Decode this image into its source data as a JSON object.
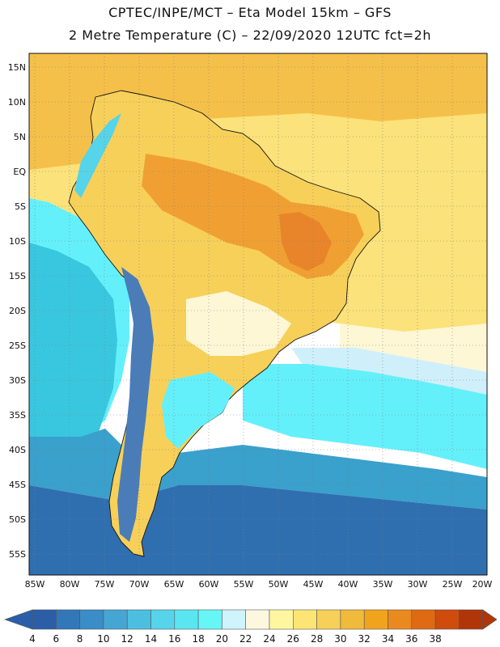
{
  "header": {
    "line1": "CPTEC/INPE/MCT –  Eta Model 15km – GFS",
    "line2": "2 Metre Temperature (C) – 22/09/2020 12UTC fct=2h"
  },
  "map": {
    "lat_labels": [
      "15N",
      "10N",
      "5N",
      "EQ",
      "5S",
      "10S",
      "15S",
      "20S",
      "25S",
      "30S",
      "35S",
      "40S",
      "45S",
      "50S",
      "55S"
    ],
    "lon_labels": [
      "85W",
      "80W",
      "75W",
      "70W",
      "65W",
      "60W",
      "55W",
      "50W",
      "45W",
      "40W",
      "35W",
      "30W",
      "25W",
      "20W"
    ],
    "lat_range": [
      15,
      -55
    ],
    "lon_range": [
      -85,
      -20
    ],
    "gridlines": "dotted",
    "ocean_colors": {
      "tropical": "#f5c04a",
      "warm": "#fbe27a",
      "mild": "#fdf7d6",
      "cool": "#cfeffb",
      "cold": "#64f0fa",
      "colder": "#39c7e0",
      "deep": "#3aa0cc",
      "polar": "#2f6fb0"
    },
    "land_colors": {
      "hot": "#f0a033",
      "very_hot": "#e8852a",
      "warm": "#f5c04a",
      "mild": "#fbe27a",
      "cool": "#fdf7d6",
      "andes": "#4a7cb8"
    }
  },
  "colorbar": {
    "labels": [
      "4",
      "6",
      "8",
      "10",
      "12",
      "14",
      "16",
      "18",
      "20",
      "22",
      "24",
      "26",
      "28",
      "30",
      "32",
      "34",
      "36",
      "38"
    ],
    "colors": [
      "#2b5ea7",
      "#3277b8",
      "#3a8dc6",
      "#45a6d4",
      "#4cbfe0",
      "#56d4ea",
      "#5ae6f0",
      "#66f6f6",
      "#cff4fb",
      "#fdf7e0",
      "#fff7a0",
      "#fde575",
      "#f7d05a",
      "#f0bb3a",
      "#f2a31e",
      "#ea8a1e",
      "#e06a14",
      "#d04c0c",
      "#b0360a"
    ],
    "left_arrow_color": "#2b5ea7",
    "right_arrow_color": "#b0360a"
  }
}
